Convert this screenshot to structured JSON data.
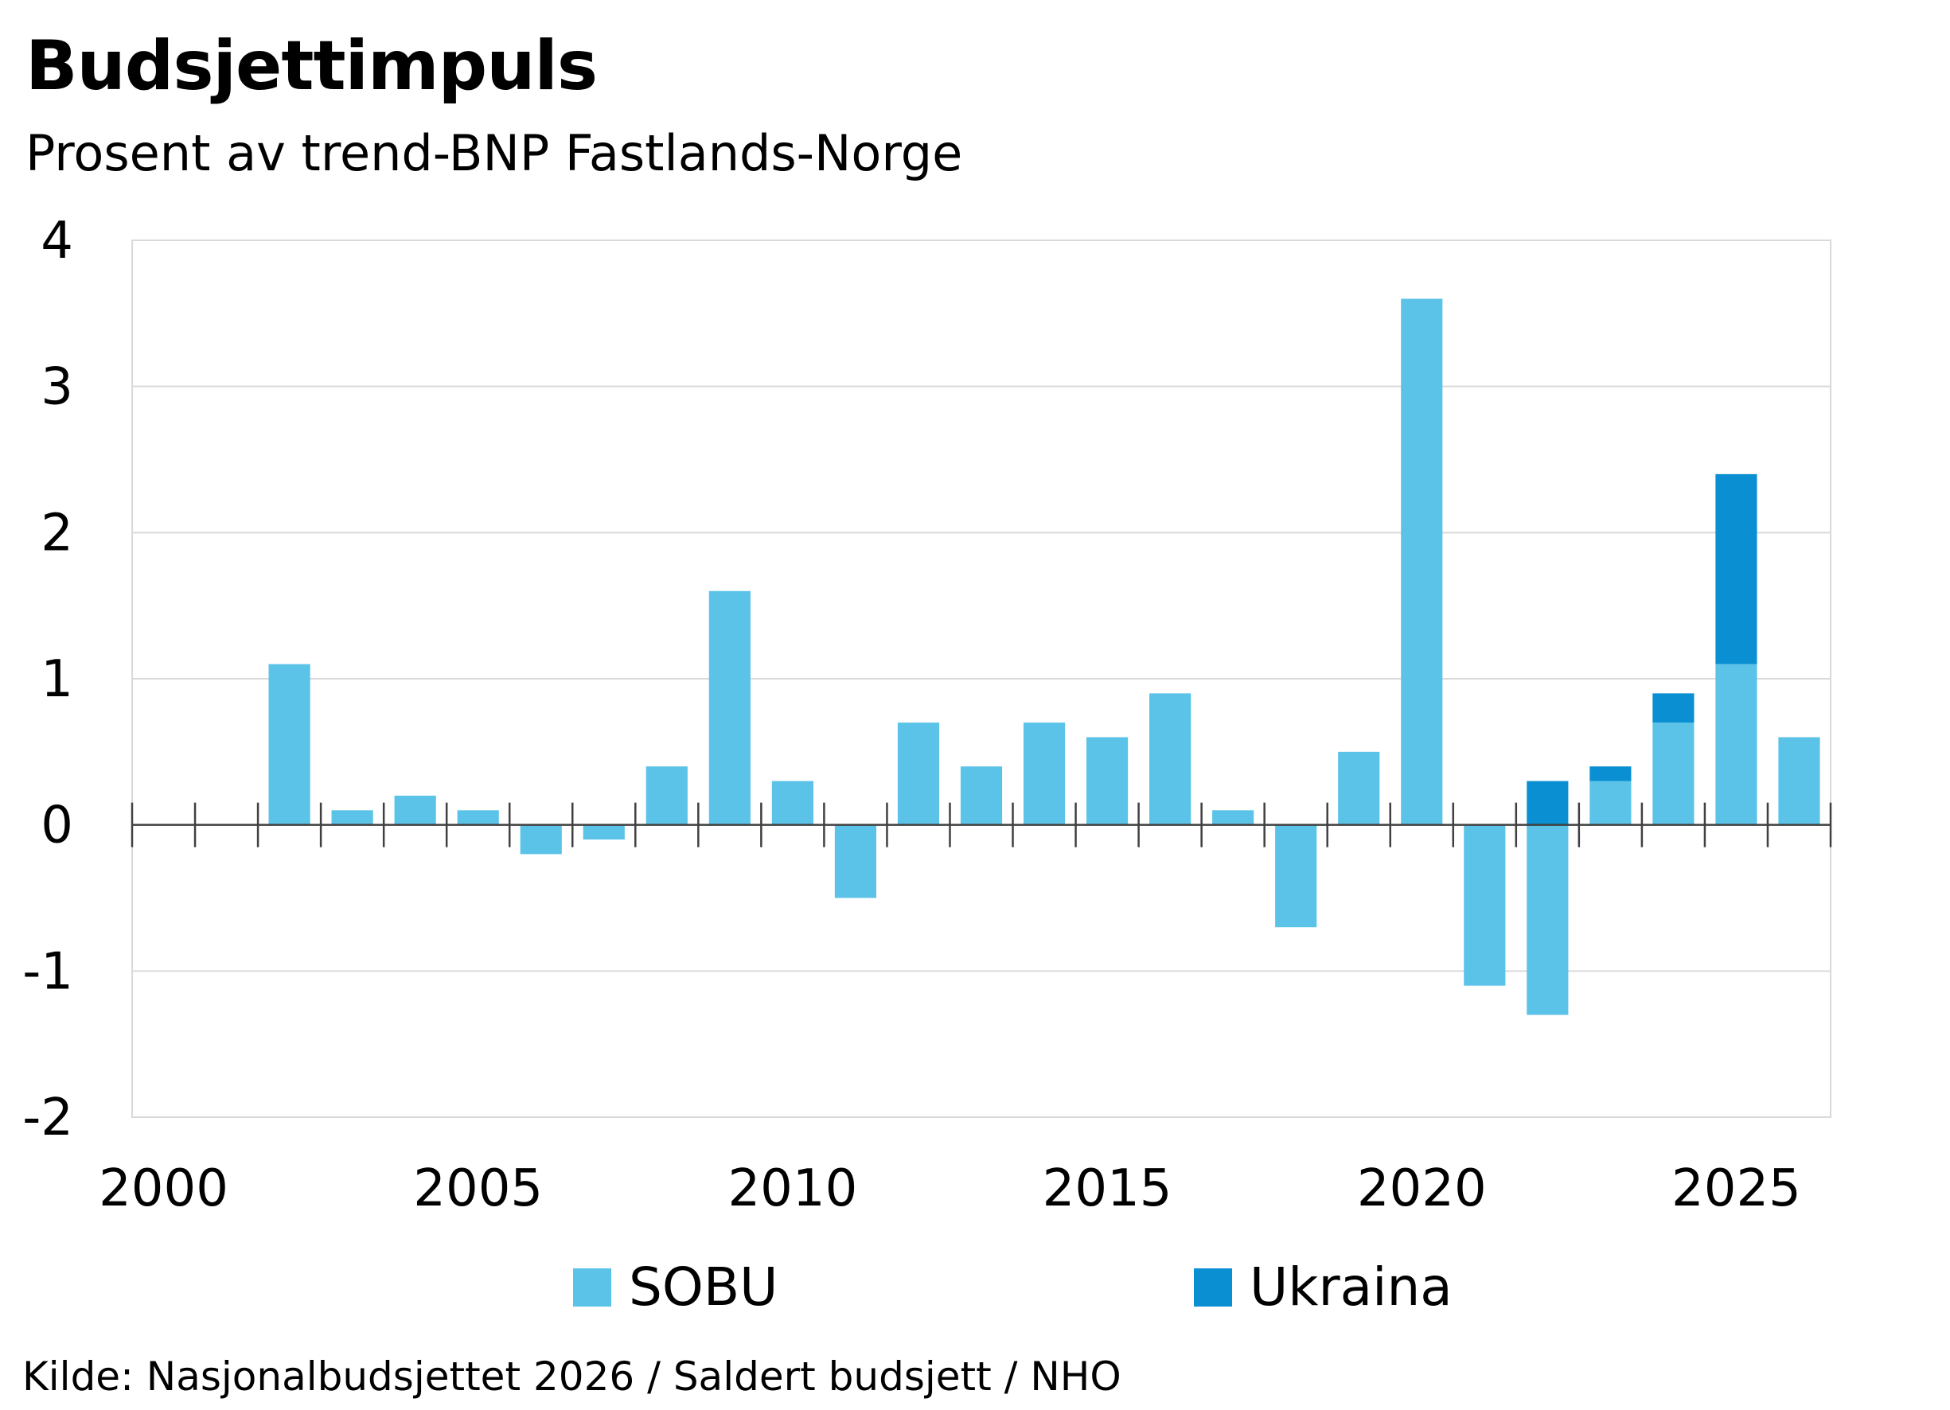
{
  "title": "Budsjettimpuls",
  "subtitle": "Prosent av trend-BNP Fastlands-Norge",
  "source": "Kilde: Nasjonalbudsjettet 2026 / Saldert budsjett / NHO",
  "colors": {
    "sobu": "#5bc3e8",
    "ukraina": "#0a8fd2",
    "grid": "#d9d9d9",
    "axis": "#404040"
  },
  "chart_data": {
    "type": "bar",
    "stacked": true,
    "categories": [
      2000,
      2001,
      2002,
      2003,
      2004,
      2005,
      2006,
      2007,
      2008,
      2009,
      2010,
      2011,
      2012,
      2013,
      2014,
      2015,
      2016,
      2017,
      2018,
      2019,
      2020,
      2021,
      2022,
      2023,
      2024,
      2025,
      2026
    ],
    "series": [
      {
        "name": "SOBU",
        "color": "#5bc3e8",
        "values": [
          0,
          0,
          1.1,
          0.1,
          0.2,
          0.1,
          -0.2,
          -0.1,
          0.4,
          1.6,
          0.3,
          -0.5,
          0.7,
          0.4,
          0.7,
          0.6,
          0.9,
          0.1,
          -0.7,
          0.5,
          3.6,
          -1.1,
          -1.3,
          0.3,
          0.7,
          1.1,
          0.6
        ]
      },
      {
        "name": "Ukraina",
        "color": "#0a8fd2",
        "values": [
          0,
          0,
          0,
          0,
          0,
          0,
          0,
          0,
          0,
          0,
          0,
          0,
          0,
          0,
          0,
          0,
          0,
          0,
          0,
          0,
          0,
          0,
          0.3,
          0.1,
          0.2,
          1.3,
          0
        ]
      }
    ],
    "x_tick_labels": [
      "2000",
      "2005",
      "2010",
      "2015",
      "2020",
      "2025"
    ],
    "y_ticks": [
      4,
      3,
      2,
      1,
      0,
      -1,
      -2
    ],
    "ylim": [
      -2,
      4
    ],
    "grid": true,
    "legend": "bottom"
  }
}
